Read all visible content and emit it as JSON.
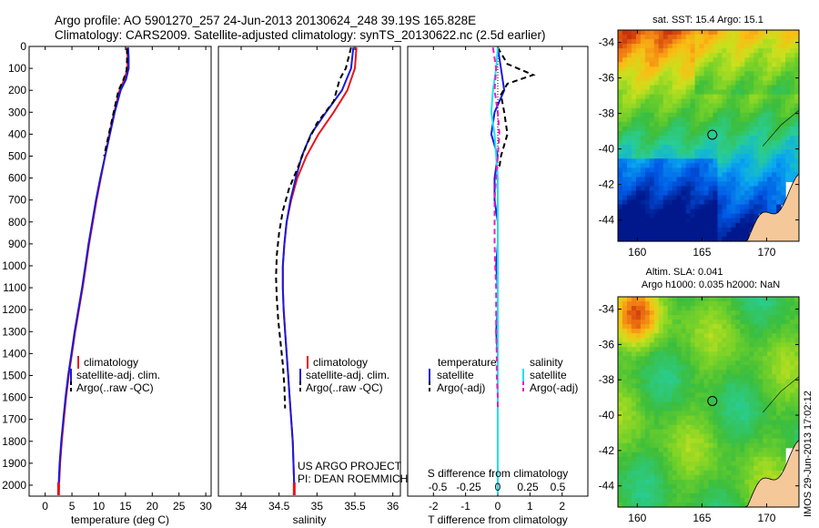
{
  "header": {
    "line1": "Argo profile: AO 5901270_257 24-Jun-2013 20130624_248 39.19S 165.828E",
    "line2": "Climatology: CARS2009. Satellite-adjusted climatology: synTS_20130622.nc (2.5d earlier)"
  },
  "colors": {
    "climatology": "#e8141a",
    "satellite_adj": "#1a1adb",
    "argo": "#000000",
    "salinity_satellite": "#22e0ee",
    "salinity_argo": "#e020c0",
    "land": "#f5c89a"
  },
  "chart_data": [
    {
      "type": "line",
      "id": "temperature",
      "xlabel": "temperature (deg C)",
      "xlim": [
        -3,
        31
      ],
      "xticks": [
        0,
        5,
        10,
        15,
        20,
        25,
        30
      ],
      "ylim": [
        0,
        2050
      ],
      "yticks": [
        0,
        100,
        200,
        300,
        400,
        500,
        600,
        700,
        800,
        900,
        1000,
        1100,
        1200,
        1300,
        1400,
        1500,
        1600,
        1700,
        1800,
        1900,
        2000
      ],
      "legend": [
        "climatology",
        "satellite-adj. clim.",
        "Argo(..raw -QC)"
      ],
      "series": [
        {
          "name": "climatology",
          "style": "solid",
          "color": "#e8141a",
          "points": [
            [
              15.3,
              5
            ],
            [
              15.4,
              50
            ],
            [
              15.4,
              100
            ],
            [
              14.8,
              150
            ],
            [
              13.9,
              200
            ],
            [
              12.9,
              300
            ],
            [
              12.0,
              400
            ],
            [
              11.2,
              500
            ],
            [
              10.4,
              600
            ],
            [
              9.6,
              700
            ],
            [
              8.9,
              800
            ],
            [
              8.2,
              900
            ],
            [
              7.6,
              1000
            ],
            [
              7.0,
              1100
            ],
            [
              6.3,
              1200
            ],
            [
              5.6,
              1300
            ],
            [
              5.0,
              1400
            ],
            [
              4.4,
              1500
            ],
            [
              3.9,
              1600
            ],
            [
              3.5,
              1700
            ],
            [
              3.1,
              1800
            ],
            [
              2.8,
              1900
            ],
            [
              2.6,
              2000
            ],
            [
              2.5,
              2040
            ]
          ]
        },
        {
          "name": "satellite-adj. clim.",
          "style": "solid",
          "color": "#1a1adb",
          "points": [
            [
              15.5,
              5
            ],
            [
              15.6,
              50
            ],
            [
              15.6,
              100
            ],
            [
              15.1,
              150
            ],
            [
              14.1,
              200
            ],
            [
              13.0,
              300
            ],
            [
              12.1,
              400
            ],
            [
              11.2,
              500
            ],
            [
              10.3,
              600
            ],
            [
              9.5,
              700
            ],
            [
              8.8,
              800
            ],
            [
              8.1,
              900
            ],
            [
              7.5,
              1000
            ],
            [
              6.9,
              1100
            ],
            [
              6.2,
              1200
            ],
            [
              5.5,
              1300
            ],
            [
              4.9,
              1400
            ],
            [
              4.3,
              1500
            ],
            [
              3.8,
              1600
            ],
            [
              3.4,
              1700
            ],
            [
              3.0,
              1800
            ],
            [
              2.7,
              1900
            ],
            [
              2.5,
              2000
            ],
            [
              2.5,
              2040
            ]
          ]
        },
        {
          "name": "Argo(..raw -QC)",
          "style": "dashed",
          "color": "#000000",
          "points": [
            [
              15.3,
              10
            ],
            [
              15.3,
              60
            ],
            [
              15.2,
              110
            ],
            [
              14.5,
              160
            ],
            [
              13.7,
              200
            ],
            [
              12.8,
              300
            ],
            [
              11.9,
              400
            ],
            [
              11.0,
              500
            ]
          ]
        }
      ]
    },
    {
      "type": "line",
      "id": "salinity",
      "xlabel": "salinity",
      "xlim": [
        33.7,
        36.1
      ],
      "xticks": [
        34,
        34.5,
        35,
        35.5,
        36
      ],
      "ylim": [
        0,
        2050
      ],
      "legend": [
        "climatology",
        "satellite-adj. clim.",
        "Argo(..raw -QC)"
      ],
      "annotation": [
        "US ARGO PROJECT",
        "PI: DEAN ROEMMICH"
      ],
      "series": [
        {
          "name": "climatology",
          "style": "solid",
          "color": "#e8141a",
          "points": [
            [
              35.52,
              5
            ],
            [
              35.5,
              100
            ],
            [
              35.4,
              200
            ],
            [
              35.22,
              300
            ],
            [
              35.02,
              400
            ],
            [
              34.86,
              500
            ],
            [
              34.74,
              600
            ],
            [
              34.66,
              700
            ],
            [
              34.6,
              800
            ],
            [
              34.57,
              900
            ],
            [
              34.55,
              1000
            ],
            [
              34.55,
              1100
            ],
            [
              34.56,
              1200
            ],
            [
              34.58,
              1300
            ],
            [
              34.6,
              1400
            ],
            [
              34.62,
              1500
            ],
            [
              34.64,
              1600
            ],
            [
              34.66,
              1700
            ],
            [
              34.68,
              1800
            ],
            [
              34.69,
              1900
            ],
            [
              34.7,
              2000
            ],
            [
              34.7,
              2040
            ]
          ]
        },
        {
          "name": "satellite-adj. clim.",
          "style": "solid",
          "color": "#1a1adb",
          "points": [
            [
              35.48,
              5
            ],
            [
              35.45,
              100
            ],
            [
              35.33,
              200
            ],
            [
              35.12,
              300
            ],
            [
              34.92,
              400
            ],
            [
              34.8,
              500
            ],
            [
              34.72,
              600
            ],
            [
              34.65,
              700
            ],
            [
              34.6,
              800
            ],
            [
              34.57,
              900
            ],
            [
              34.55,
              1000
            ],
            [
              34.55,
              1100
            ],
            [
              34.56,
              1200
            ],
            [
              34.58,
              1300
            ],
            [
              34.6,
              1400
            ],
            [
              34.62,
              1500
            ],
            [
              34.64,
              1600
            ],
            [
              34.66,
              1700
            ],
            [
              34.68,
              1800
            ],
            [
              34.69,
              1900
            ],
            [
              34.7,
              2000
            ],
            [
              34.7,
              2040
            ]
          ]
        },
        {
          "name": "Argo(..raw -QC)",
          "style": "dashed",
          "color": "#000000",
          "points": [
            [
              35.45,
              5
            ],
            [
              35.38,
              100
            ],
            [
              35.3,
              150
            ],
            [
              35.22,
              250
            ],
            [
              35.0,
              350
            ],
            [
              34.86,
              450
            ],
            [
              34.75,
              550
            ],
            [
              34.63,
              650
            ],
            [
              34.55,
              750
            ],
            [
              34.5,
              850
            ],
            [
              34.47,
              950
            ],
            [
              34.46,
              1050
            ],
            [
              34.47,
              1150
            ],
            [
              34.49,
              1250
            ],
            [
              34.52,
              1350
            ],
            [
              34.55,
              1450
            ],
            [
              34.57,
              1550
            ],
            [
              34.58,
              1650
            ]
          ]
        }
      ]
    },
    {
      "type": "line",
      "id": "difference",
      "xlabel": "T difference from climatology",
      "xlabel_top": "S difference from climatology",
      "xlim": [
        -2.8,
        2.8
      ],
      "xticks": [
        -2,
        -1,
        0,
        1,
        2
      ],
      "xticks_top": [
        "-0.5",
        "-0.25",
        "0",
        "0.25",
        "0.5"
      ],
      "ylim": [
        0,
        2050
      ],
      "legend": [
        {
          "heading": "temperature",
          "items": [
            "satellite",
            "Argo(-adj)"
          ]
        },
        {
          "heading": "salinity",
          "items": [
            "satellite",
            "Argo(-adj)"
          ]
        }
      ],
      "series": [
        {
          "name": "temperature satellite",
          "style": "solid",
          "color": "#1a1adb",
          "points": [
            [
              0.0,
              5
            ],
            [
              0.1,
              100
            ],
            [
              0.2,
              200
            ],
            [
              -0.1,
              300
            ],
            [
              -0.2,
              400
            ],
            [
              0.0,
              500
            ],
            [
              -0.1,
              600
            ],
            [
              -0.1,
              700
            ],
            [
              0.0,
              800
            ],
            [
              0.0,
              900
            ],
            [
              -0.05,
              1000
            ],
            [
              0.0,
              1100
            ],
            [
              0.0,
              1200
            ],
            [
              -0.05,
              1300
            ],
            [
              0.0,
              1400
            ],
            [
              0.0,
              1500
            ],
            [
              0.0,
              1600
            ],
            [
              0.0,
              1800
            ],
            [
              0.0,
              2040
            ]
          ]
        },
        {
          "name": "temperature Argo(-adj)",
          "style": "dashed",
          "color": "#000000",
          "points": [
            [
              0.0,
              5
            ],
            [
              0.3,
              80
            ],
            [
              1.1,
              130
            ],
            [
              0.3,
              170
            ],
            [
              0.1,
              220
            ],
            [
              0.2,
              300
            ],
            [
              0.3,
              400
            ],
            [
              0.1,
              500
            ],
            [
              0.05,
              550
            ]
          ]
        },
        {
          "name": "salinity satellite",
          "style": "solid",
          "color": "#22e0ee",
          "points": [
            [
              0.0,
              5
            ],
            [
              -0.05,
              100
            ],
            [
              -0.15,
              200
            ],
            [
              -0.2,
              300
            ],
            [
              -0.1,
              400
            ],
            [
              -0.05,
              500
            ],
            [
              0.0,
              600
            ],
            [
              0.0,
              800
            ],
            [
              0.0,
              1000
            ],
            [
              0.0,
              1500
            ],
            [
              0.0,
              2040
            ]
          ]
        },
        {
          "name": "salinity Argo(-adj)",
          "style": "dashed",
          "color": "#e020c0",
          "points": [
            [
              -0.15,
              5
            ],
            [
              -0.05,
              100
            ],
            [
              -0.1,
              200
            ],
            [
              0.0,
              300
            ],
            [
              0.05,
              400
            ],
            [
              0.0,
              500
            ],
            [
              -0.05,
              600
            ],
            [
              -0.1,
              700
            ],
            [
              -0.1,
              800
            ],
            [
              -0.1,
              900
            ],
            [
              -0.08,
              1000
            ],
            [
              -0.05,
              1100
            ],
            [
              -0.05,
              1200
            ],
            [
              -0.05,
              1300
            ],
            [
              -0.03,
              1400
            ],
            [
              -0.03,
              1500
            ],
            [
              0.0,
              1600
            ],
            [
              0.0,
              1650
            ]
          ]
        }
      ]
    },
    {
      "type": "heatmap",
      "id": "sst-map",
      "title": "sat. SST: 15.4   Argo: 15.1",
      "xticks": [
        160,
        165,
        170
      ],
      "yticks": [
        -34,
        -36,
        -38,
        -40,
        -42,
        -44
      ],
      "xlim": [
        158.5,
        172.5
      ],
      "ylim": [
        -45.2,
        -33.3
      ],
      "marker": [
        165.8,
        -39.2
      ]
    },
    {
      "type": "heatmap",
      "id": "sla-map",
      "title_lines": [
        "Altim. SLA: 0.041",
        "Argo h1000: 0.035 h2000: NaN"
      ],
      "xticks": [
        160,
        165,
        170
      ],
      "yticks": [
        -34,
        -36,
        -38,
        -40,
        -42,
        -44
      ],
      "xlim": [
        158.5,
        172.5
      ],
      "ylim": [
        -45.2,
        -33.3
      ],
      "marker": [
        165.8,
        -39.2
      ]
    }
  ],
  "side_note": "IMOS 29-Jun-2013 17:02:12"
}
